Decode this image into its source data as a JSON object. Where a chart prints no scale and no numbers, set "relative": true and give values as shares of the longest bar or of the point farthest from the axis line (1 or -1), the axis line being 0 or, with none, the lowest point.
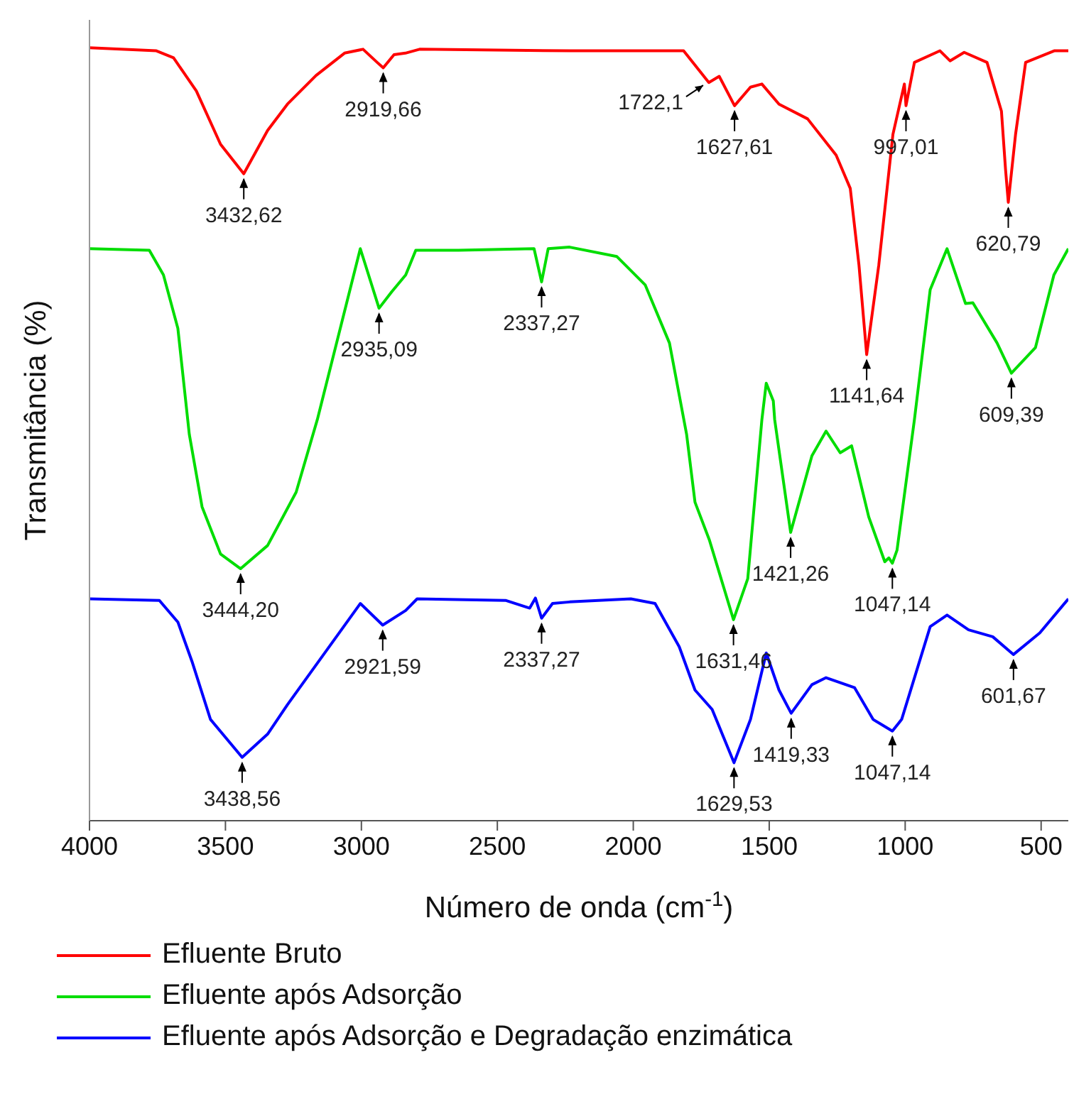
{
  "chart_data": {
    "type": "line",
    "xlabel": "Número de onda (cm$^{-1}$)",
    "ylabel": "Transmitância (%)",
    "relative": true,
    "xlim": [
      4000,
      400
    ],
    "xticks": [
      4000,
      3500,
      3000,
      2500,
      2000,
      1500,
      1000,
      500
    ],
    "legend": "bottom",
    "marker": "none",
    "line_style": "solid",
    "grid": false,
    "series": [
      {
        "name": "Efluente Bruto",
        "color": "#ff0000",
        "x": [
          4000,
          3754,
          3691,
          3607,
          3518,
          3432.62,
          3345,
          3272,
          3167,
          3062,
          2994,
          2942,
          2919.66,
          2880,
          2838,
          2786,
          2234,
          1815,
          1722.1,
          1684,
          1627.61,
          1569,
          1527,
          1464,
          1359,
          1254,
          1202,
          1170,
          1141.64,
          1097,
          1045,
          1003,
          997.01,
          966,
          872,
          835,
          783,
          699,
          646,
          631,
          620.79,
          594,
          557,
          452,
          400
        ],
        "values": [
          1.0,
          0.996,
          0.987,
          0.944,
          0.875,
          0.837,
          0.893,
          0.927,
          0.964,
          0.993,
          0.998,
          0.981,
          0.974,
          0.991,
          0.993,
          0.998,
          0.996,
          0.996,
          0.955,
          0.963,
          0.925,
          0.949,
          0.953,
          0.927,
          0.908,
          0.861,
          0.818,
          0.719,
          0.603,
          0.719,
          0.888,
          0.953,
          0.925,
          0.981,
          0.996,
          0.983,
          0.994,
          0.981,
          0.918,
          0.843,
          0.8,
          0.888,
          0.981,
          0.996,
          0.996
        ]
      },
      {
        "name": "Efluente após Adsorção",
        "color": "#00dd00",
        "x": [
          4000,
          3780,
          3728,
          3675,
          3633,
          3586,
          3518,
          3444.2,
          3345,
          3240,
          3162,
          3004,
          2935.09,
          2889,
          2837,
          2800,
          2643,
          2365,
          2337.27,
          2313,
          2234,
          2061,
          1956,
          1867,
          1804,
          1773,
          1720,
          1631.46,
          1579,
          1527,
          1511,
          1485,
          1480,
          1421.26,
          1343,
          1291,
          1239,
          1197,
          1134,
          1075,
          1060,
          1047.14,
          1030,
          966,
          908,
          846,
          778,
          751,
          662,
          609.39,
          521,
          453,
          400
        ],
        "values": [
          0.74,
          0.738,
          0.706,
          0.637,
          0.5,
          0.406,
          0.345,
          0.326,
          0.356,
          0.425,
          0.519,
          0.74,
          0.663,
          0.684,
          0.706,
          0.738,
          0.738,
          0.74,
          0.697,
          0.74,
          0.742,
          0.73,
          0.693,
          0.618,
          0.5,
          0.412,
          0.363,
          0.26,
          0.313,
          0.519,
          0.566,
          0.543,
          0.519,
          0.373,
          0.472,
          0.504,
          0.476,
          0.485,
          0.393,
          0.335,
          0.34,
          0.333,
          0.35,
          0.519,
          0.687,
          0.74,
          0.669,
          0.67,
          0.618,
          0.579,
          0.612,
          0.706,
          0.74
        ]
      },
      {
        "name": "Efluente após Adsorção e Degradação enzimática",
        "color": "#0000ff",
        "x": [
          4000,
          3743,
          3675,
          3623,
          3555,
          3438.56,
          3345,
          3272,
          3004,
          2921.59,
          2837,
          2795,
          2470,
          2381,
          2360,
          2337.27,
          2297,
          2234,
          2009,
          1920,
          1831,
          1773,
          1710,
          1629.53,
          1569,
          1511,
          1464,
          1419.33,
          1343,
          1291,
          1186,
          1118,
          1047.14,
          1013,
          908,
          846,
          767,
          678,
          601.67,
          505,
          400
        ],
        "values": [
          0.287,
          0.285,
          0.257,
          0.206,
          0.131,
          0.082,
          0.112,
          0.15,
          0.281,
          0.253,
          0.272,
          0.287,
          0.285,
          0.275,
          0.288,
          0.262,
          0.281,
          0.283,
          0.287,
          0.281,
          0.225,
          0.169,
          0.144,
          0.075,
          0.131,
          0.217,
          0.169,
          0.139,
          0.176,
          0.185,
          0.172,
          0.131,
          0.116,
          0.131,
          0.251,
          0.266,
          0.247,
          0.238,
          0.215,
          0.243,
          0.287
        ]
      }
    ],
    "annotations": [
      {
        "text": "3432,62",
        "x": 3432.62,
        "y": 0.837
      },
      {
        "text": "2919,66",
        "x": 2919.66,
        "y": 0.974
      },
      {
        "text": "1627,61",
        "x": 1627.61,
        "y": 0.925
      },
      {
        "text": "1722,1",
        "x": 1722.1,
        "y": 0.955
      },
      {
        "text": "1141,64",
        "x": 1141.64,
        "y": 0.603
      },
      {
        "text": "997,01",
        "x": 997.01,
        "y": 0.925
      },
      {
        "text": "620,79",
        "x": 620.79,
        "y": 0.8
      },
      {
        "text": "3444,20",
        "x": 3444.2,
        "y": 0.326
      },
      {
        "text": "2935,09",
        "x": 2935.09,
        "y": 0.663
      },
      {
        "text": "2337,27",
        "x": 2337.27,
        "y": 0.697
      },
      {
        "text": "1631,46",
        "x": 1631.46,
        "y": 0.26
      },
      {
        "text": "1421,26",
        "x": 1421.26,
        "y": 0.373
      },
      {
        "text": "1047,14",
        "x": 1047.14,
        "y": 0.333
      },
      {
        "text": "609,39",
        "x": 609.39,
        "y": 0.579
      },
      {
        "text": "3438,56",
        "x": 3438.56,
        "y": 0.082
      },
      {
        "text": "2921,59",
        "x": 2921.59,
        "y": 0.253
      },
      {
        "text": "2337,27",
        "x": 2337.27,
        "y": 0.262
      },
      {
        "text": "1629,53",
        "x": 1629.53,
        "y": 0.075
      },
      {
        "text": "1419,33",
        "x": 1419.33,
        "y": 0.139
      },
      {
        "text": "1047,14",
        "x": 1047.14,
        "y": 0.116
      },
      {
        "text": "601,67",
        "x": 601.67,
        "y": 0.215
      }
    ]
  }
}
